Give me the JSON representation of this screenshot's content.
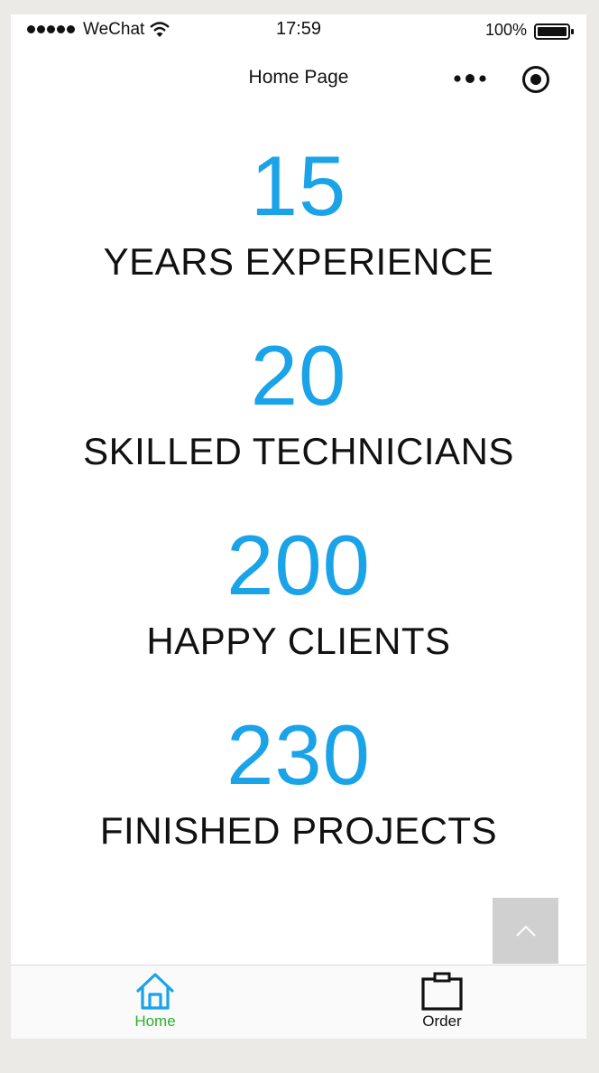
{
  "status_bar": {
    "carrier": "WeChat",
    "time": "17:59",
    "battery": "100%"
  },
  "nav": {
    "title": "Home Page"
  },
  "stats": [
    {
      "number": "15",
      "label": "YEARS EXPERIENCE"
    },
    {
      "number": "20",
      "label": "SKILLED TECHNICIANS"
    },
    {
      "number": "200",
      "label": "HAPPY CLIENTS"
    },
    {
      "number": "230",
      "label": "FINISHED PROJECTS"
    }
  ],
  "tab_bar": {
    "home_label": "Home",
    "order_label": "Order",
    "active_color": "#2cb02c",
    "accent_icon_color": "#1aa3e8"
  },
  "colors": {
    "number_blue": "#1aa3e8",
    "background": "#ebeae6"
  },
  "icons": {
    "wifi": "wifi-icon",
    "battery": "battery-icon",
    "more": "more-dots-icon",
    "target": "target-icon",
    "back_top": "chevron-up-icon",
    "home": "house-icon",
    "order": "clipboard-icon"
  }
}
